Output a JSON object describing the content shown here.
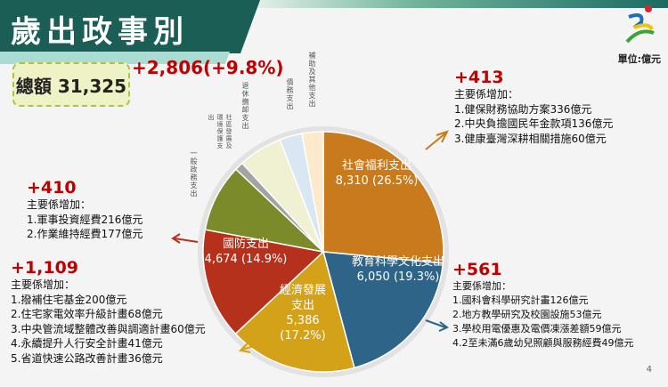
{
  "title": "歲出政事別",
  "unit": "單位:億元",
  "page_number": "4",
  "total": "總額 31,325",
  "growth": "+2,806(+9.8%)",
  "chart_data": {
    "type": "pie",
    "title": "歲出政事別",
    "slices": [
      {
        "name": "社會福利支出",
        "value": 8310,
        "percent": 26.5,
        "color": "#c87a1c",
        "label_value": "8,310 (26.5%)"
      },
      {
        "name": "教育科學文化支出",
        "value": 6050,
        "percent": 19.3,
        "color": "#2e6487",
        "label_value": "6,050 (19.3%)"
      },
      {
        "name": "經濟發展支出",
        "value": 5386,
        "percent": 17.2,
        "color": "#d3a219",
        "label_value": "5,386",
        "label_pct": "(17.2%)"
      },
      {
        "name": "國防支出",
        "value": 4674,
        "percent": 14.9,
        "color": "#b5311c",
        "label_value": "4,674 (14.9%)"
      },
      {
        "name": "一般政務支出",
        "value": 2850,
        "percent": 9.1,
        "color": "#7b8b2a"
      },
      {
        "name": "社區發展及環境保護支出",
        "value": 360,
        "percent": 1.1,
        "color": "#a3a3a3"
      },
      {
        "name": "退休撫卹支出",
        "value": 1850,
        "percent": 5.9,
        "color": "#eff1d2"
      },
      {
        "name": "債務支出",
        "value": 950,
        "percent": 3.0,
        "color": "#d8e7f1"
      },
      {
        "name": "補助及其他支出",
        "value": 895,
        "percent": 2.9,
        "color": "#fde9cb"
      }
    ]
  },
  "annotations": {
    "social": {
      "delta": "+413",
      "heading": "主要係增加：",
      "items": [
        "1.健保財務協助方案336億元",
        "2.中央負擔國民年金款項136億元",
        "3.健康臺灣深耕相關措施60億元"
      ]
    },
    "education": {
      "delta": "+561",
      "heading": "主要係增加：",
      "items": [
        "1.國科會科學研究計畫126億元",
        "2.地方教學研究及校園設施53億元",
        "3.學校用電優惠及電價凍漲差額59億元",
        "4.2至未滿6歲幼兒照顧與服務經費49億元"
      ]
    },
    "defense": {
      "delta": "+410",
      "heading": "主要係增加：",
      "items": [
        "1.軍事投資經費216億元",
        "2.作業維持經費177億元"
      ]
    },
    "economic": {
      "delta": "+1,109",
      "heading": "主要係增加：",
      "items": [
        "1.撥補住宅基金200億元",
        "2.住宅家電效率升級計畫68億元",
        "3.中央管流域整體改善與調適計畫60億元",
        "4.永續提升人行安全計畫41億元",
        "5.省道快速公路改善計畫36億元"
      ]
    }
  },
  "colors": {
    "accent_red": "#c00000",
    "banner": "#1b5e56"
  }
}
